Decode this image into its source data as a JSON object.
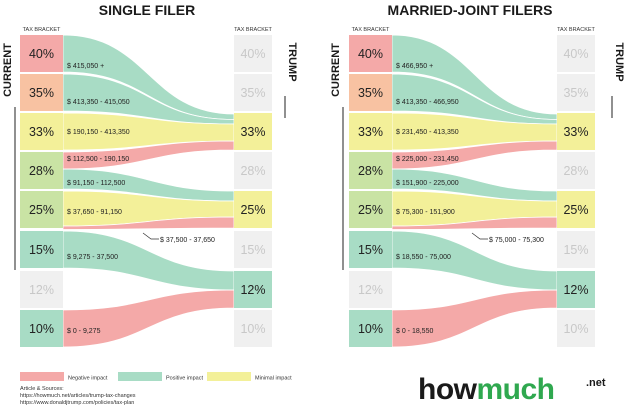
{
  "colors": {
    "negative": "#f4a9a8",
    "positive": "#a8dcc5",
    "minimal": "#f3f099",
    "inactive": "#f0f0f0",
    "tax_bracket_label": "#333333",
    "current_bracket_colors": [
      "#f4a9a8",
      "#f8c2a2",
      "#f3f099",
      "#c9e3a4",
      "#c9e3a4",
      "#a8dcc5",
      "#f0f0f0",
      "#a8dcc5"
    ]
  },
  "labels": {
    "tax_bracket": "TAX BRACKET",
    "current": "CURRENT",
    "trump": "TRUMP"
  },
  "brackets": [
    "40%",
    "35%",
    "33%",
    "28%",
    "25%",
    "15%",
    "12%",
    "10%"
  ],
  "trump_active": [
    false,
    false,
    true,
    false,
    true,
    false,
    true,
    false
  ],
  "panels": [
    {
      "title": "SINGLE FILER",
      "flows": [
        {
          "label": "$ 415,050 +",
          "from": 0,
          "to": 2,
          "impact": "positive"
        },
        {
          "label": "$ 413,350 - 415,050",
          "from": 1,
          "to": 2,
          "impact": "positive"
        },
        {
          "label": "$ 190,150 - 413,350",
          "from": 2,
          "to": 2,
          "impact": "minimal"
        },
        {
          "label": "$ 112,500 - 190,150",
          "from": 3,
          "to": 2,
          "impact": "negative"
        },
        {
          "label": "$ 91,150 - 112,500",
          "from": 3,
          "to": 4,
          "impact": "positive"
        },
        {
          "label": "$ 37,650 - 91,150",
          "from": 4,
          "to": 4,
          "impact": "minimal"
        },
        {
          "label": "$ 37,500 - 37,650",
          "from": 4,
          "to": 4,
          "impact": "negative"
        },
        {
          "label": "$ 9,275 - 37,500",
          "from": 5,
          "to": 6,
          "impact": "positive"
        },
        {
          "label": "$ 0 - 9,275",
          "from": 7,
          "to": 6,
          "impact": "negative"
        }
      ]
    },
    {
      "title": "MARRIED-JOINT FILERS",
      "flows": [
        {
          "label": "$ 466,950 +",
          "from": 0,
          "to": 2,
          "impact": "positive"
        },
        {
          "label": "$ 413,350 - 466,950",
          "from": 1,
          "to": 2,
          "impact": "positive"
        },
        {
          "label": "$ 231,450 - 413,350",
          "from": 2,
          "to": 2,
          "impact": "minimal"
        },
        {
          "label": "$ 225,000 - 231,450",
          "from": 3,
          "to": 2,
          "impact": "negative"
        },
        {
          "label": "$ 151,900 - 225,000",
          "from": 3,
          "to": 4,
          "impact": "positive"
        },
        {
          "label": "$ 75,300 - 151,900",
          "from": 4,
          "to": 4,
          "impact": "minimal"
        },
        {
          "label": "$ 75,000 - 75,300",
          "from": 4,
          "to": 4,
          "impact": "negative"
        },
        {
          "label": "$ 18,550 - 75,000",
          "from": 5,
          "to": 6,
          "impact": "positive"
        },
        {
          "label": "$ 0 - 18,550",
          "from": 7,
          "to": 6,
          "impact": "negative"
        }
      ]
    }
  ],
  "legend": [
    {
      "label": "Negative impact",
      "impact": "negative"
    },
    {
      "label": "Positive impact",
      "impact": "positive"
    },
    {
      "label": "Minimal impact",
      "impact": "minimal"
    }
  ],
  "sources": {
    "heading": "Article & Sources:",
    "lines": [
      "https://howmuch.net/articles/trump-tax-changes",
      "https://www.donaldjtrump.com/policies/tax-plan"
    ]
  },
  "logo": {
    "how": "how",
    "much": "much",
    "net": ".net"
  }
}
